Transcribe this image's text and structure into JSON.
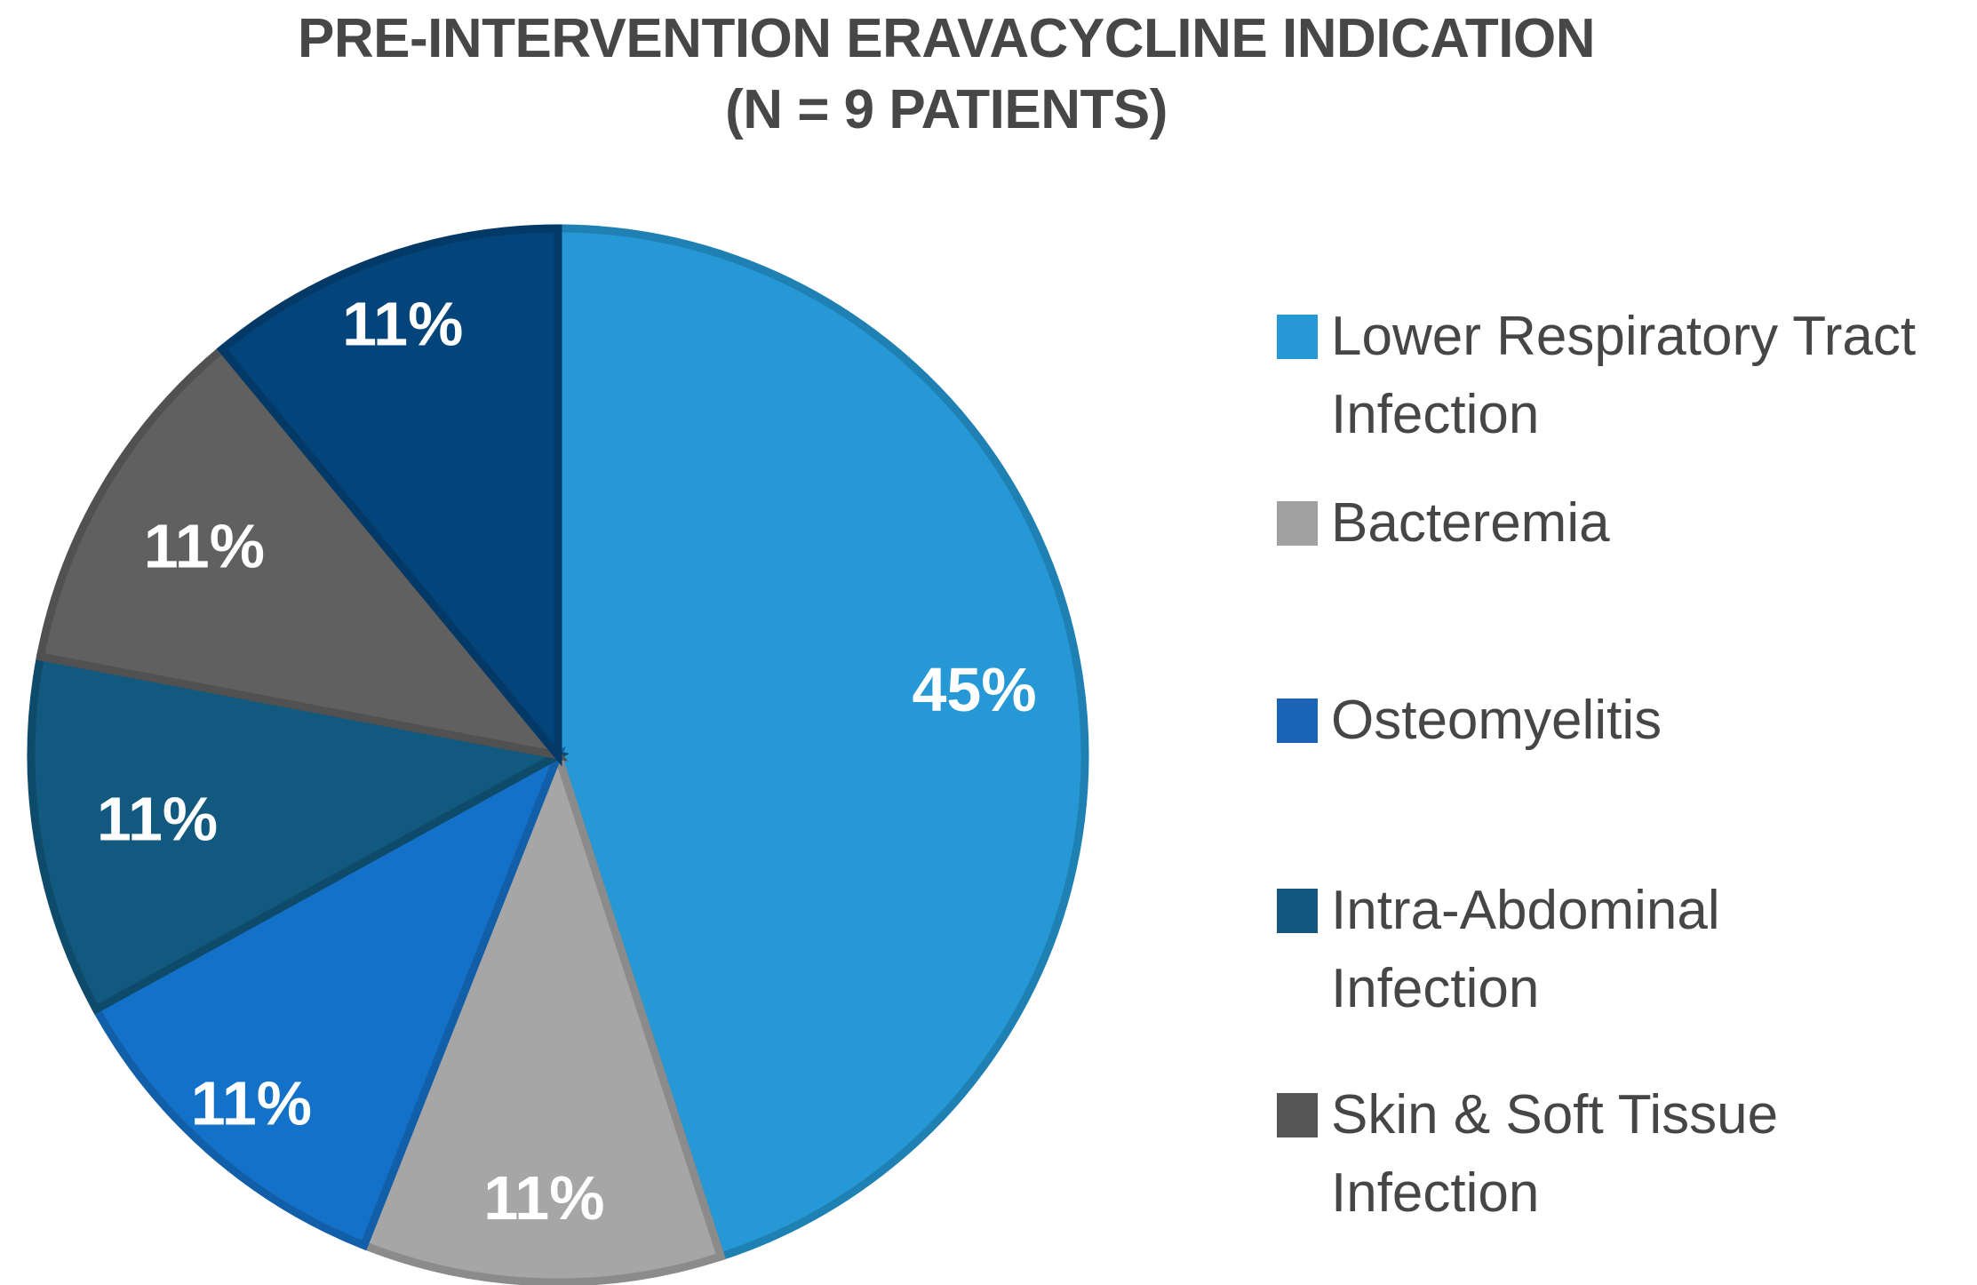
{
  "title": {
    "line1": "PRE-INTERVENTION ERAVACYCLINE INDICATION",
    "line2": "(N = 9 PATIENTS)"
  },
  "chart_data": {
    "type": "pie",
    "title": "PRE-INTERVENTION ERAVACYCLINE INDICATION (N = 9 PATIENTS)",
    "n_patients": 9,
    "start_angle_deg": 0,
    "direction": "clockwise",
    "legend_position": "right",
    "slices": [
      {
        "label": "Lower Respiratory Tract Infection",
        "value_pct": 45,
        "data_label": "45%",
        "color": "#2598D5",
        "in_legend": true
      },
      {
        "label": "Bacteremia",
        "value_pct": 11,
        "data_label": "11%",
        "color": "#A6A6A6",
        "in_legend": true
      },
      {
        "label": "Osteomyelitis",
        "value_pct": 11,
        "data_label": "11%",
        "color": "#1471C8",
        "in_legend": true
      },
      {
        "label": "Intra-Abdominal Infection",
        "value_pct": 11,
        "data_label": "11%",
        "color": "#11597F",
        "in_legend": true
      },
      {
        "label": "Skin & Soft Tissue Infection",
        "value_pct": 11,
        "data_label": "11%",
        "color": "#606060",
        "in_legend": true
      },
      {
        "label": "",
        "value_pct": 11,
        "data_label": "11%",
        "color": "#03447B",
        "in_legend": false
      }
    ]
  },
  "legend": {
    "entries": [
      {
        "lines": [
          "Lower Respiratory Tract",
          "Infection"
        ],
        "swatch_color": "#2598D5"
      },
      {
        "lines": [
          "Bacteremia"
        ],
        "swatch_color": "#A1A1A1"
      },
      {
        "lines": [
          "Osteomyelitis"
        ],
        "swatch_color": "#1B63B7"
      },
      {
        "lines": [
          "Intra-Abdominal",
          "Infection"
        ],
        "swatch_color": "#11577E"
      },
      {
        "lines": [
          "Skin & Soft Tissue",
          "Infection"
        ],
        "swatch_color": "#555555"
      }
    ]
  },
  "colors": {
    "background": "#FFFFFF",
    "title_text": "#474747",
    "legend_text": "#464646",
    "data_label_text": "#FFFFFF"
  }
}
